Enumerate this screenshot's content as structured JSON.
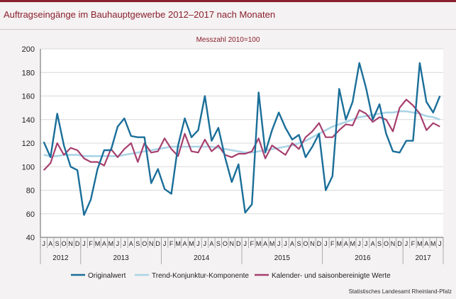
{
  "title": "Auftragseingänge im Bauhauptgewerbe 2012–2017 nach Monaten",
  "source": "Statistisches Landesamt Rheinland-Pfalz",
  "chart_data": {
    "type": "line",
    "subtitle": "Messzahl 2010=100",
    "ylim": [
      40,
      200
    ],
    "yticks": [
      40,
      60,
      80,
      100,
      120,
      140,
      160,
      180,
      200
    ],
    "grid": true,
    "legend_position": "bottom",
    "month_labels": [
      "J",
      "A",
      "S",
      "O",
      "N",
      "D",
      "J",
      "F",
      "M",
      "A",
      "M",
      "J",
      "J",
      "A",
      "S",
      "O",
      "N",
      "D",
      "J",
      "F",
      "M",
      "A",
      "M",
      "J",
      "J",
      "A",
      "S",
      "O",
      "N",
      "D",
      "J",
      "F",
      "M",
      "A",
      "M",
      "J",
      "J",
      "A",
      "S",
      "O",
      "N",
      "D",
      "J",
      "F",
      "M",
      "A",
      "M",
      "J",
      "J",
      "A",
      "S",
      "O",
      "N",
      "D",
      "J",
      "F",
      "M",
      "A",
      "M",
      "J"
    ],
    "years": [
      {
        "label": "2012",
        "start": 0,
        "count": 6
      },
      {
        "label": "2013",
        "start": 6,
        "count": 12
      },
      {
        "label": "2014",
        "start": 18,
        "count": 12
      },
      {
        "label": "2015",
        "start": 30,
        "count": 12
      },
      {
        "label": "2016",
        "start": 42,
        "count": 12
      },
      {
        "label": "2017",
        "start": 54,
        "count": 6
      }
    ],
    "series": [
      {
        "name": "Originalwert",
        "color": "#1a6e99",
        "values": [
          121,
          108,
          145,
          118,
          100,
          97,
          59,
          72,
          98,
          114,
          114,
          134,
          141,
          126,
          125,
          125,
          86,
          98,
          81,
          77,
          118,
          141,
          125,
          131,
          160,
          122,
          133,
          108,
          87,
          102,
          61,
          68,
          163,
          112,
          131,
          146,
          133,
          123,
          127,
          108,
          117,
          128,
          80,
          92,
          166,
          140,
          155,
          188,
          167,
          140,
          153,
          128,
          113,
          112,
          122,
          122,
          188,
          155,
          146,
          160
        ]
      },
      {
        "name": "Trend-Konjunktur-Komponente",
        "color": "#a9d4e6",
        "values": [
          110,
          109,
          109,
          110,
          110,
          110,
          109,
          109,
          109,
          109,
          109,
          109,
          110,
          111,
          112,
          113,
          114,
          115,
          116,
          117,
          117,
          117,
          117,
          117,
          117,
          117,
          116,
          115,
          114,
          113,
          112,
          112,
          113,
          114,
          115,
          116,
          117,
          118,
          120,
          122,
          125,
          128,
          131,
          134,
          136,
          138,
          140,
          142,
          143,
          144,
          145,
          146,
          146,
          147,
          147,
          146,
          145,
          143,
          142,
          140
        ]
      },
      {
        "name": "Kalender- und saisonbereinigte Werte",
        "color": "#a63f6e",
        "values": [
          97,
          103,
          120,
          110,
          116,
          114,
          107,
          104,
          104,
          101,
          115,
          108,
          115,
          120,
          104,
          120,
          112,
          113,
          124,
          115,
          109,
          128,
          113,
          112,
          123,
          113,
          118,
          110,
          108,
          111,
          111,
          113,
          124,
          107,
          118,
          114,
          110,
          120,
          115,
          125,
          130,
          137,
          125,
          125,
          131,
          136,
          135,
          148,
          145,
          138,
          142,
          140,
          130,
          150,
          157,
          152,
          145,
          131,
          137,
          134
        ]
      }
    ]
  }
}
